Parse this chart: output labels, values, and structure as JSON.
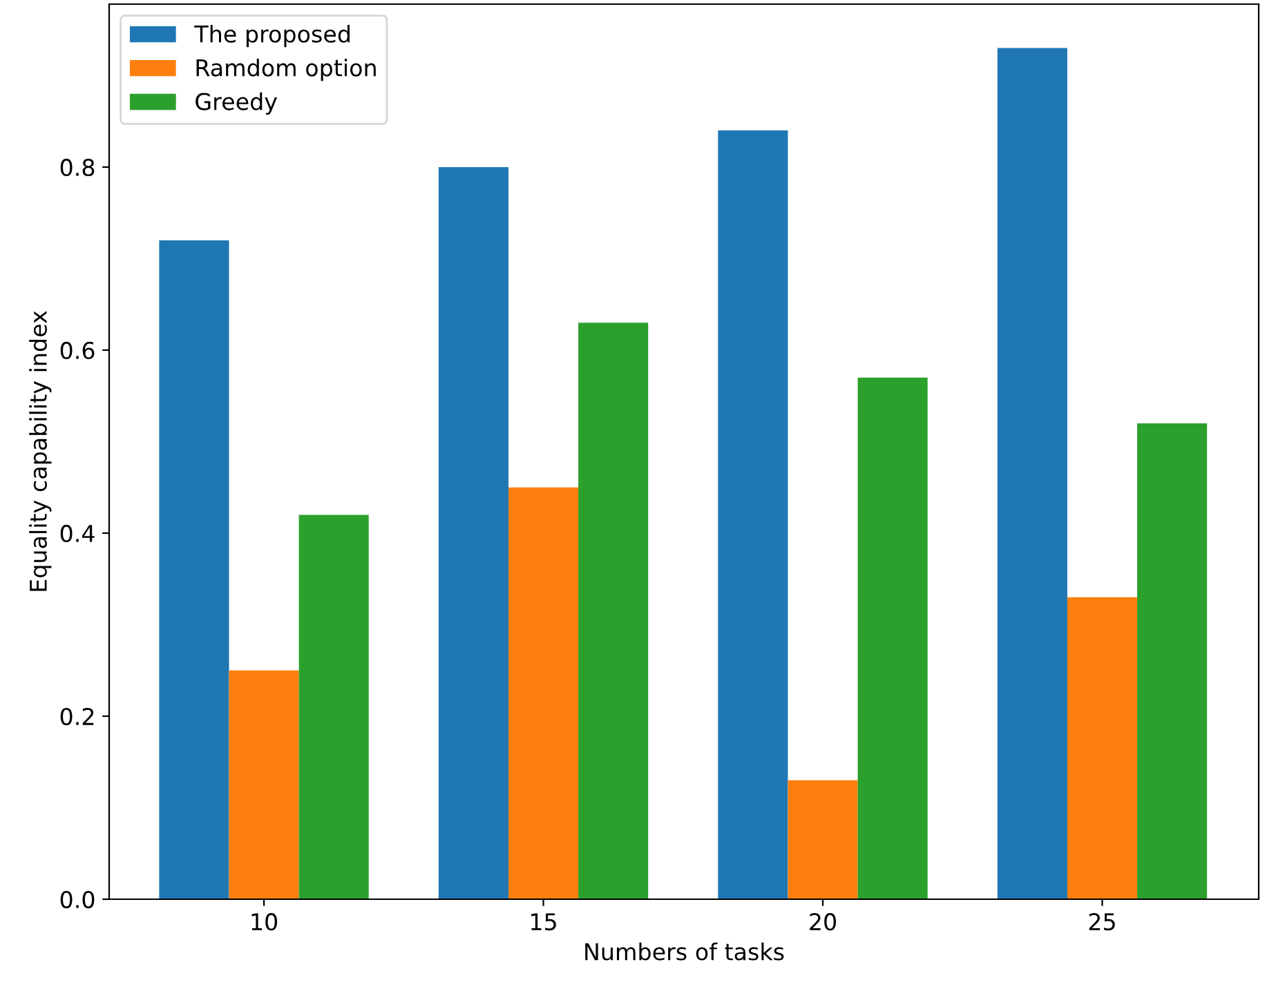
{
  "chart_data": {
    "type": "bar",
    "xlabel": "Numbers of tasks",
    "ylabel": "Equality capability index",
    "categories": [
      "10",
      "15",
      "20",
      "25"
    ],
    "series": [
      {
        "name": "The proposed",
        "color": "#1f77b4",
        "values": [
          0.72,
          0.8,
          0.84,
          0.93
        ]
      },
      {
        "name": "Ramdom option",
        "color": "#ff7f0e",
        "values": [
          0.25,
          0.45,
          0.13,
          0.33
        ]
      },
      {
        "name": "Greedy",
        "color": "#2ca02c",
        "values": [
          0.42,
          0.63,
          0.57,
          0.52
        ]
      }
    ],
    "ylim": [
      0,
      0.978
    ],
    "yticks": [
      {
        "value": 0,
        "label": "0.0"
      },
      0.2,
      0.4,
      0.6,
      0.8
    ],
    "legend": "top left",
    "grid": false
  }
}
